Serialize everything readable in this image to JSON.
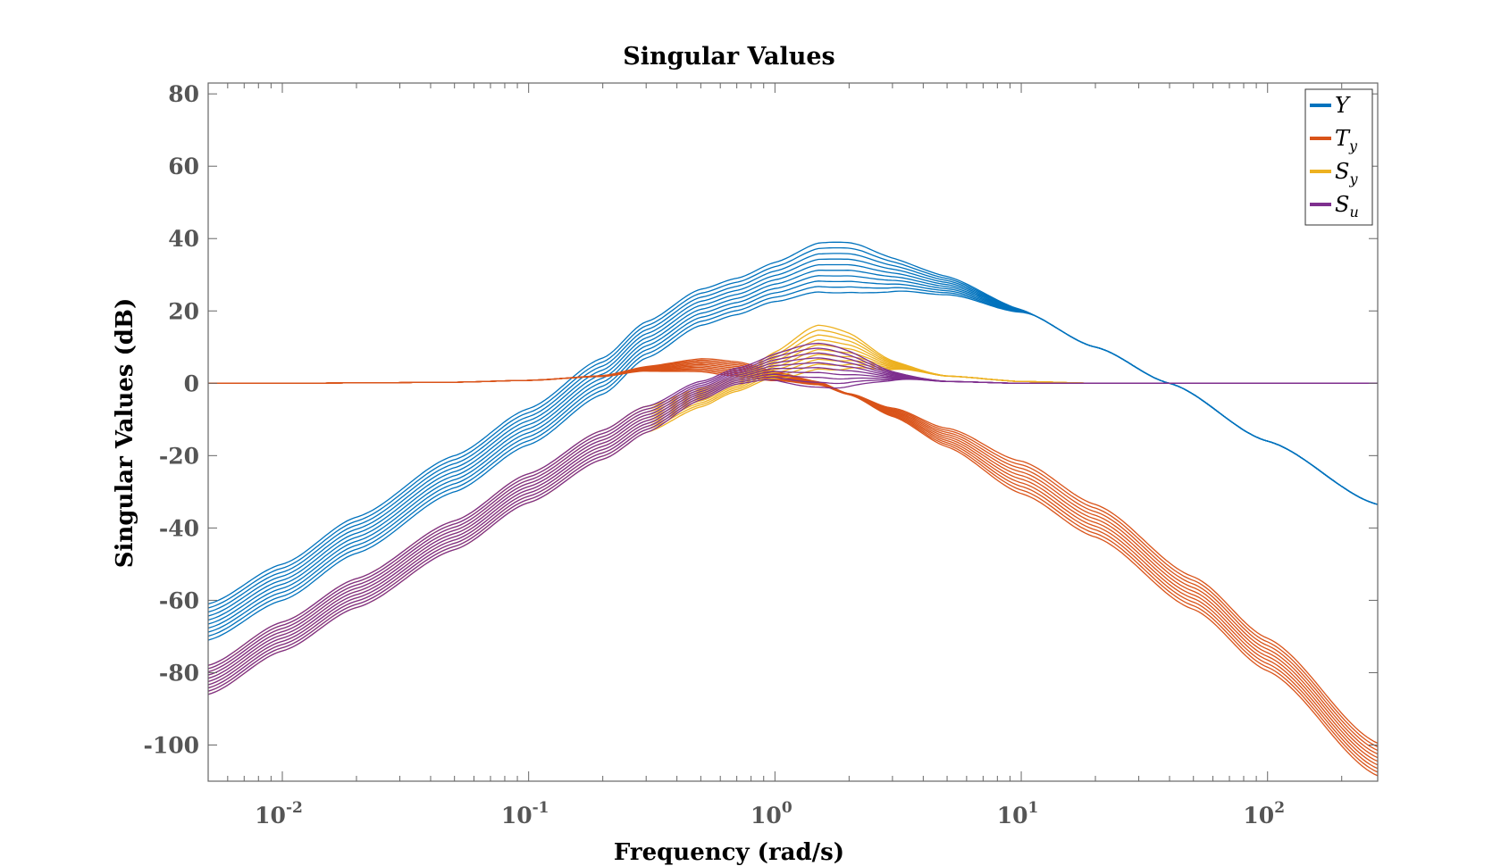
{
  "chart_data": {
    "type": "line",
    "title": "Singular Values",
    "xlabel": "Frequency (rad/s)",
    "ylabel": "Singular Values (dB)",
    "xscale": "log",
    "xlim": [
      0.005,
      280
    ],
    "ylim": [
      -110,
      83
    ],
    "xticks": [
      {
        "base": "10",
        "exp": "-2",
        "value": 0.01
      },
      {
        "base": "10",
        "exp": "-1",
        "value": 0.1
      },
      {
        "base": "10",
        "exp": "0",
        "value": 1
      },
      {
        "base": "10",
        "exp": "1",
        "value": 10
      },
      {
        "base": "10",
        "exp": "2",
        "value": 100
      }
    ],
    "yticks": [
      80,
      60,
      40,
      20,
      0,
      -20,
      -40,
      -60,
      -80,
      -100
    ],
    "grid": false,
    "legend_position": "top-right",
    "series": [
      {
        "name": "Y",
        "sub": "",
        "color": "#0072BD",
        "family": "Y",
        "count": 10,
        "x": [
          0.005,
          0.01,
          0.02,
          0.05,
          0.1,
          0.2,
          0.3,
          0.5,
          0.7,
          1,
          1.5,
          2,
          3,
          5,
          10,
          20,
          40,
          100,
          280
        ],
        "y": [
          -66,
          -55,
          -42,
          -25,
          -12,
          2,
          12,
          21,
          24,
          28,
          32,
          32,
          30,
          27,
          20,
          10,
          0,
          -16,
          -33.5
        ]
      },
      {
        "name": "T",
        "sub": "y",
        "color": "#D95319",
        "family": "T",
        "count": 10,
        "x": [
          0.005,
          0.01,
          0.02,
          0.05,
          0.1,
          0.2,
          0.3,
          0.5,
          0.7,
          1,
          1.5,
          2,
          3,
          5,
          10,
          20,
          50,
          100,
          280
        ],
        "y": [
          0,
          0,
          0.1,
          0.3,
          0.8,
          2,
          4,
          5,
          4,
          2,
          0,
          -3,
          -8,
          -15,
          -26,
          -38,
          -58,
          -75,
          -104
        ]
      },
      {
        "name": "S",
        "sub": "y",
        "color": "#EDB120",
        "family": "S",
        "count": 10,
        "x": [
          0.005,
          0.01,
          0.02,
          0.05,
          0.1,
          0.2,
          0.3,
          0.5,
          0.7,
          1,
          1.5,
          2,
          3,
          5,
          10,
          20
        ],
        "y": [
          -82,
          -70,
          -58,
          -42,
          -29,
          -17,
          -10,
          -4,
          0,
          5,
          10,
          9,
          5,
          2,
          0.5,
          0
        ]
      },
      {
        "name": "S",
        "sub": "u",
        "color": "#7E2F8E",
        "family": "S",
        "count": 10,
        "x": [
          0.005,
          0.01,
          0.02,
          0.05,
          0.1,
          0.2,
          0.3,
          0.5,
          0.7,
          1,
          1.5,
          2,
          3,
          5,
          10,
          280
        ],
        "y": [
          -82,
          -70,
          -58,
          -42,
          -29,
          -17,
          -10,
          -2,
          2,
          4.5,
          5,
          4,
          2,
          0.5,
          0,
          0
        ]
      }
    ]
  }
}
